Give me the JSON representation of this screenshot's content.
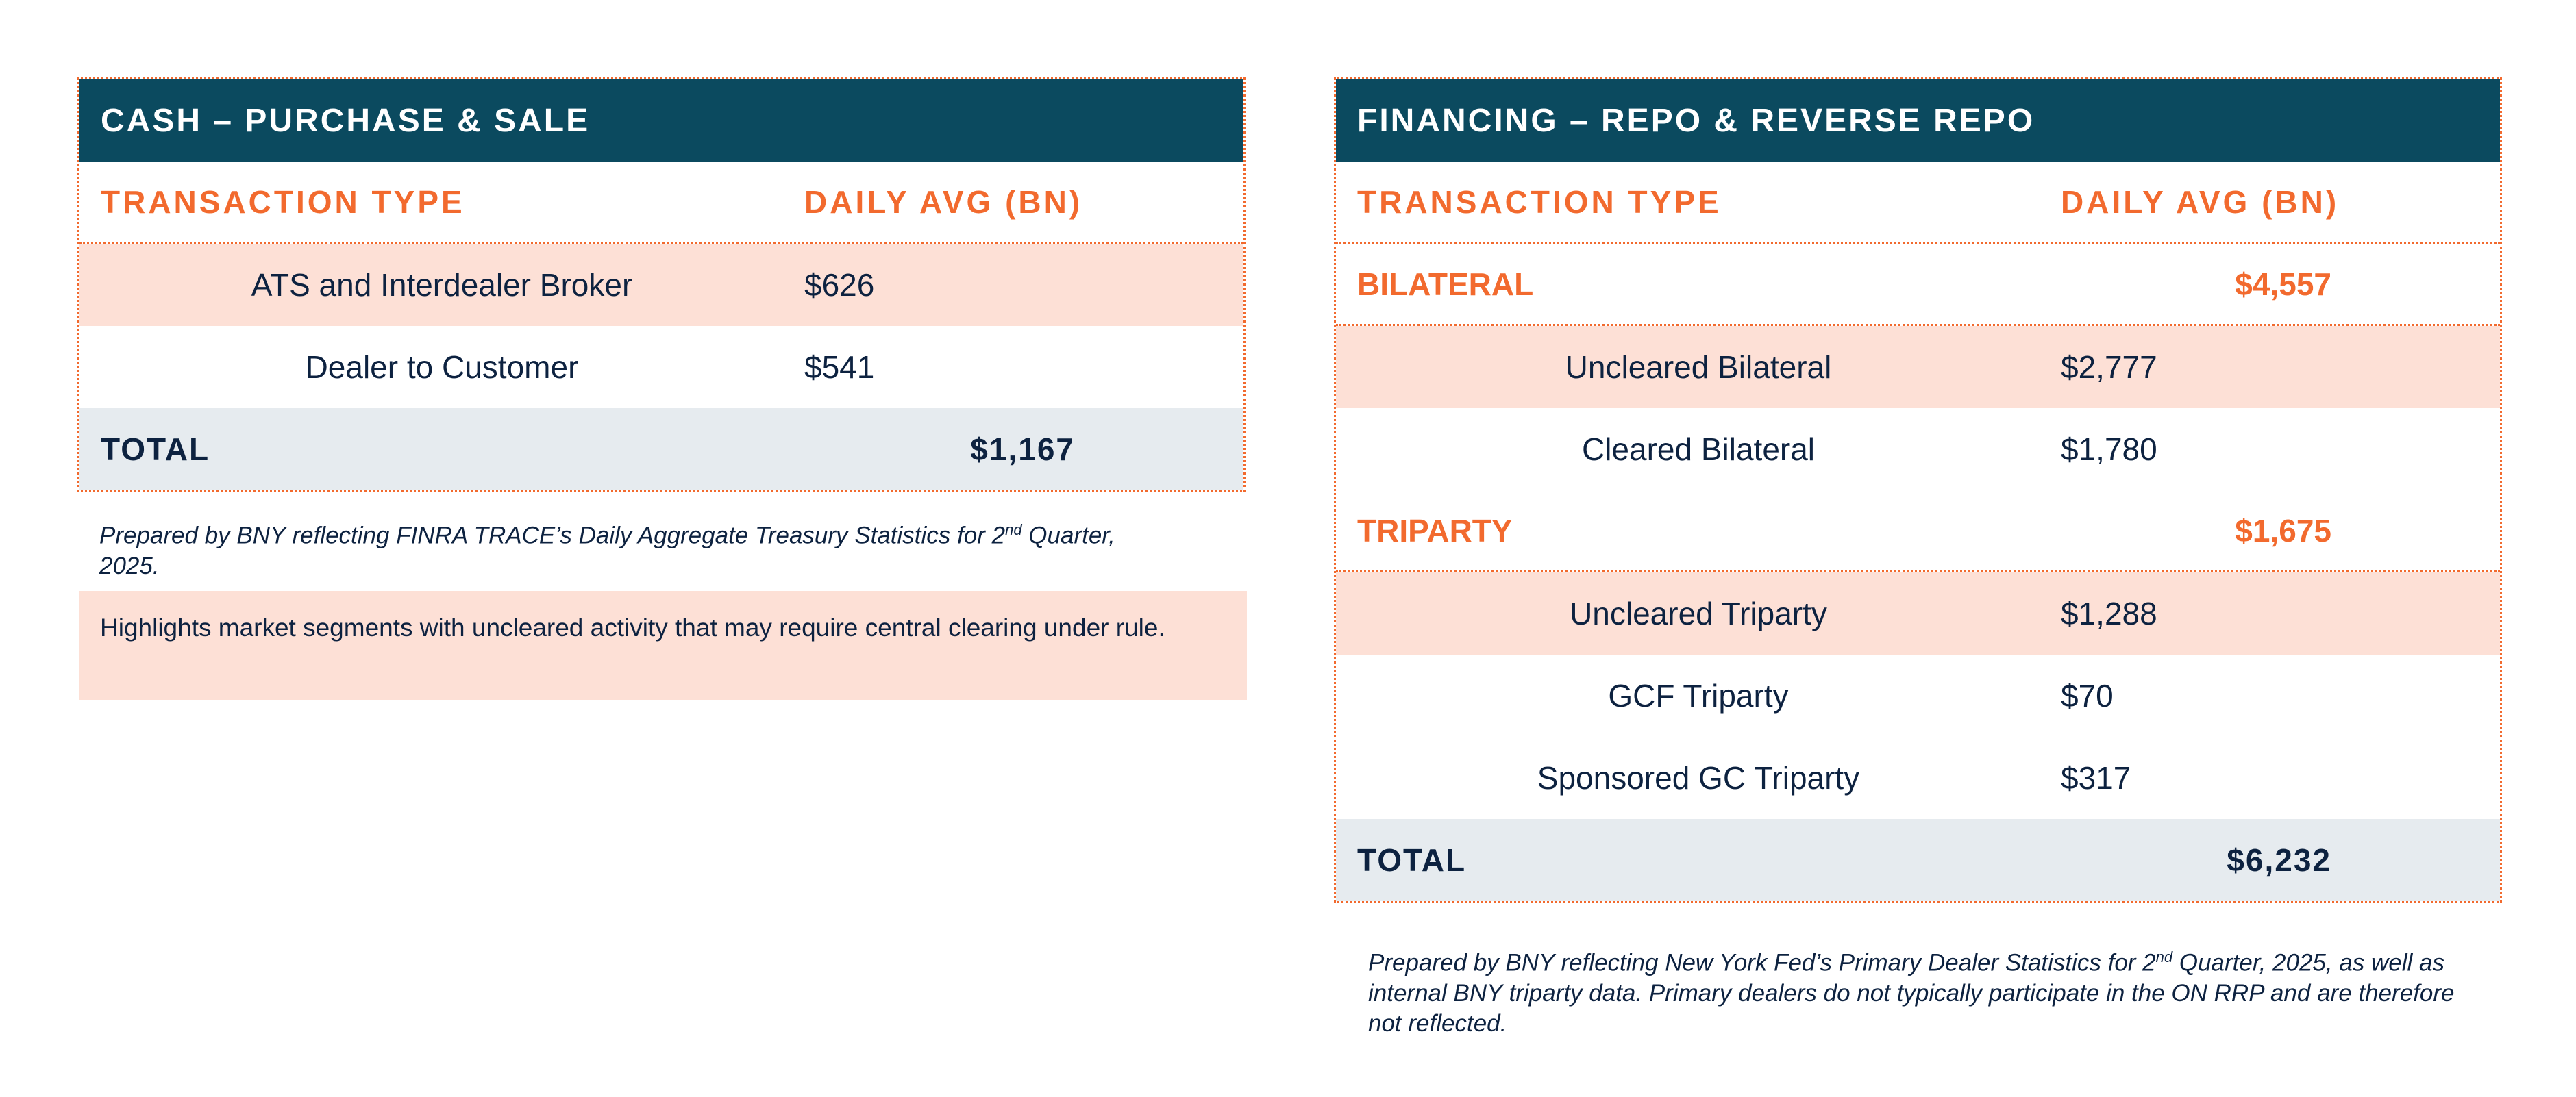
{
  "left": {
    "title": "CASH – PURCHASE & SALE",
    "columns": [
      "TRANSACTION TYPE",
      "DAILY AVG (BN)"
    ],
    "rows": [
      {
        "label": "ATS and Interdealer Broker",
        "value": "$626"
      },
      {
        "label": "Dealer to Customer",
        "value": "$541"
      }
    ],
    "total": {
      "label": "TOTAL",
      "value": "$1,167"
    },
    "note": [
      "Prepared by BNY reflecting FINRA TRACE’s Daily Aggregate Treasury Statistics for 2",
      "nd",
      "Quarter, 2025."
    ]
  },
  "highlight": "Highlights market segments with uncleared activity that may require central clearing under rule.",
  "right": {
    "title": "FINANCING – REPO & REVERSE REPO",
    "columns": [
      "TRANSACTION TYPE",
      "DAILY AVG (BN)"
    ],
    "groups": [
      {
        "label": "BILATERAL",
        "value": "$4,557",
        "rows": [
          {
            "label": "Uncleared Bilateral",
            "value": "$2,777"
          },
          {
            "label": "Cleared Bilateral",
            "value": "$1,780"
          }
        ]
      },
      {
        "label": "TRIPARTY",
        "value": "$1,675",
        "rows": [
          {
            "label": "Uncleared Triparty",
            "value": "$1,288"
          },
          {
            "label": "GCF Triparty",
            "value": "$70"
          },
          {
            "label": "Sponsored GC Triparty",
            "value": "$317"
          }
        ]
      }
    ],
    "total": {
      "label": "TOTAL",
      "value": "$6,232"
    },
    "note": [
      "Prepared by BNY reflecting New York Fed’s Primary Dealer Statistics for 2",
      "nd",
      "Quarter, 2025, as well as internal BNY triparty data. Primary dealers do not typically participate in the ON RRP and are therefore not reflected."
    ]
  }
}
